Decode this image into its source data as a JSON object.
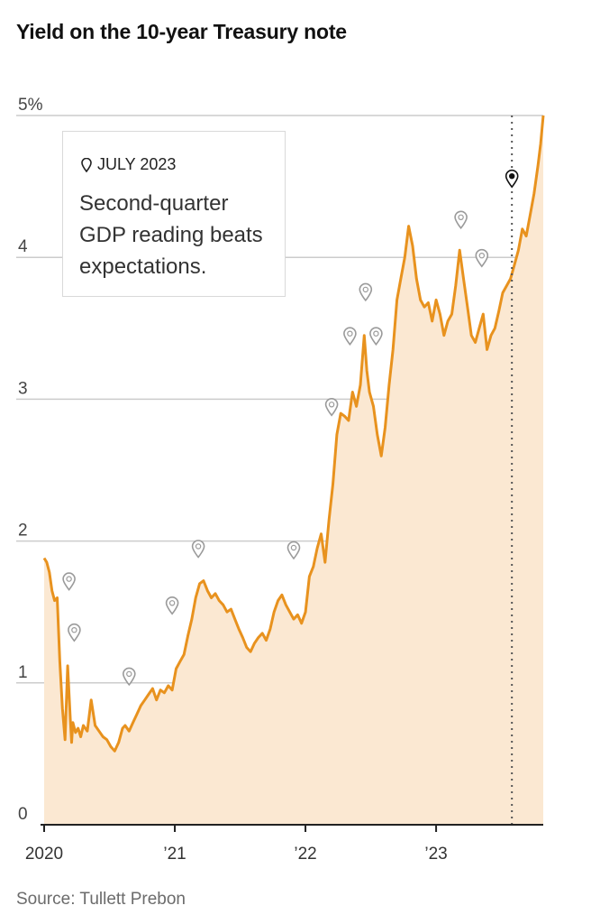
{
  "title": "Yield on the 10-year Treasury note",
  "source": "Source: Tullett Prebon",
  "callout": {
    "date": "JULY 2023",
    "text": "Second-quarter GDP reading beats expectations."
  },
  "colors": {
    "line": "#e8921e",
    "area": "#fbe8d2",
    "grid": "#cccccc",
    "marker_active": "#111111",
    "marker": "#9a9a9a"
  },
  "chart_data": {
    "type": "area",
    "title": "Yield on the 10-year Treasury note",
    "xlabel": "",
    "ylabel": "",
    "ylim": [
      0,
      5
    ],
    "xlim": [
      2020.0,
      2023.82
    ],
    "y_ticks": [
      {
        "value": 0,
        "label": "0"
      },
      {
        "value": 1,
        "label": "1"
      },
      {
        "value": 2,
        "label": "2"
      },
      {
        "value": 3,
        "label": "3"
      },
      {
        "value": 4,
        "label": "4"
      },
      {
        "value": 5,
        "label": "5%"
      }
    ],
    "x_ticks": [
      {
        "value": 2020,
        "label": "2020"
      },
      {
        "value": 2021,
        "label": "’21"
      },
      {
        "value": 2022,
        "label": "’22"
      },
      {
        "value": 2023,
        "label": "’23"
      }
    ],
    "grid": true,
    "highlight_date": 2023.58,
    "series": [
      {
        "x": [
          2020.0,
          2020.02,
          2020.04,
          2020.06,
          2020.08,
          2020.1,
          2020.12,
          2020.14,
          2020.16,
          2020.18,
          2020.2,
          2020.21,
          2020.22,
          2020.24,
          2020.26,
          2020.28,
          2020.3,
          2020.33,
          2020.36,
          2020.39,
          2020.42,
          2020.45,
          2020.48,
          2020.51,
          2020.54,
          2020.57,
          2020.6,
          2020.62,
          2020.65,
          2020.68,
          2020.71,
          2020.74,
          2020.77,
          2020.8,
          2020.83,
          2020.86,
          2020.89,
          2020.92,
          2020.95,
          2020.98,
          2021.01,
          2021.04,
          2021.07,
          2021.1,
          2021.13,
          2021.16,
          2021.19,
          2021.22,
          2021.25,
          2021.28,
          2021.31,
          2021.34,
          2021.37,
          2021.4,
          2021.43,
          2021.46,
          2021.49,
          2021.52,
          2021.55,
          2021.58,
          2021.61,
          2021.64,
          2021.67,
          2021.7,
          2021.73,
          2021.76,
          2021.79,
          2021.82,
          2021.85,
          2021.88,
          2021.91,
          2021.94,
          2021.97,
          2022.0,
          2022.03,
          2022.06,
          2022.09,
          2022.12,
          2022.15,
          2022.18,
          2022.21,
          2022.24,
          2022.27,
          2022.3,
          2022.33,
          2022.36,
          2022.39,
          2022.42,
          2022.45,
          2022.47,
          2022.49,
          2022.52,
          2022.55,
          2022.58,
          2022.61,
          2022.64,
          2022.67,
          2022.7,
          2022.73,
          2022.76,
          2022.79,
          2022.82,
          2022.85,
          2022.88,
          2022.91,
          2022.94,
          2022.97,
          2023.0,
          2023.03,
          2023.06,
          2023.09,
          2023.12,
          2023.15,
          2023.18,
          2023.21,
          2023.24,
          2023.27,
          2023.3,
          2023.33,
          2023.36,
          2023.39,
          2023.42,
          2023.45,
          2023.48,
          2023.51,
          2023.54,
          2023.57,
          2023.6,
          2023.63,
          2023.66,
          2023.69,
          2023.72,
          2023.75,
          2023.78,
          2023.8,
          2023.82
        ],
        "values": [
          1.88,
          1.85,
          1.78,
          1.65,
          1.58,
          1.6,
          1.15,
          0.82,
          0.6,
          1.12,
          0.75,
          0.58,
          0.72,
          0.65,
          0.68,
          0.62,
          0.7,
          0.66,
          0.88,
          0.7,
          0.66,
          0.62,
          0.6,
          0.55,
          0.52,
          0.58,
          0.68,
          0.7,
          0.66,
          0.72,
          0.78,
          0.84,
          0.88,
          0.92,
          0.96,
          0.88,
          0.95,
          0.93,
          0.98,
          0.95,
          1.1,
          1.15,
          1.2,
          1.33,
          1.45,
          1.6,
          1.7,
          1.72,
          1.65,
          1.6,
          1.63,
          1.58,
          1.55,
          1.5,
          1.52,
          1.45,
          1.38,
          1.32,
          1.25,
          1.22,
          1.28,
          1.32,
          1.35,
          1.3,
          1.38,
          1.5,
          1.58,
          1.62,
          1.55,
          1.5,
          1.45,
          1.48,
          1.42,
          1.5,
          1.75,
          1.82,
          1.95,
          2.05,
          1.85,
          2.15,
          2.4,
          2.75,
          2.9,
          2.88,
          2.85,
          3.05,
          2.95,
          3.1,
          3.45,
          3.2,
          3.05,
          2.95,
          2.75,
          2.6,
          2.8,
          3.1,
          3.35,
          3.7,
          3.85,
          4.0,
          4.22,
          4.08,
          3.85,
          3.7,
          3.65,
          3.68,
          3.55,
          3.7,
          3.6,
          3.45,
          3.55,
          3.6,
          3.8,
          4.05,
          3.85,
          3.65,
          3.45,
          3.4,
          3.5,
          3.6,
          3.35,
          3.45,
          3.5,
          3.62,
          3.75,
          3.8,
          3.85,
          3.95,
          4.05,
          4.2,
          4.15,
          4.3,
          4.45,
          4.65,
          4.8,
          5.0
        ]
      }
    ],
    "event_markers": [
      {
        "x": 2020.19,
        "y": 1.72,
        "active": false
      },
      {
        "x": 2020.23,
        "y": 1.36,
        "active": false
      },
      {
        "x": 2020.65,
        "y": 1.05,
        "active": false
      },
      {
        "x": 2020.98,
        "y": 1.55,
        "active": false
      },
      {
        "x": 2021.18,
        "y": 1.95,
        "active": false
      },
      {
        "x": 2021.91,
        "y": 1.94,
        "active": false
      },
      {
        "x": 2022.2,
        "y": 2.95,
        "active": false
      },
      {
        "x": 2022.34,
        "y": 3.45,
        "active": false
      },
      {
        "x": 2022.46,
        "y": 3.76,
        "active": false
      },
      {
        "x": 2022.54,
        "y": 3.45,
        "active": false
      },
      {
        "x": 2023.19,
        "y": 4.27,
        "active": false
      },
      {
        "x": 2023.35,
        "y": 4.0,
        "active": false
      },
      {
        "x": 2023.58,
        "y": 4.56,
        "active": true
      }
    ]
  }
}
